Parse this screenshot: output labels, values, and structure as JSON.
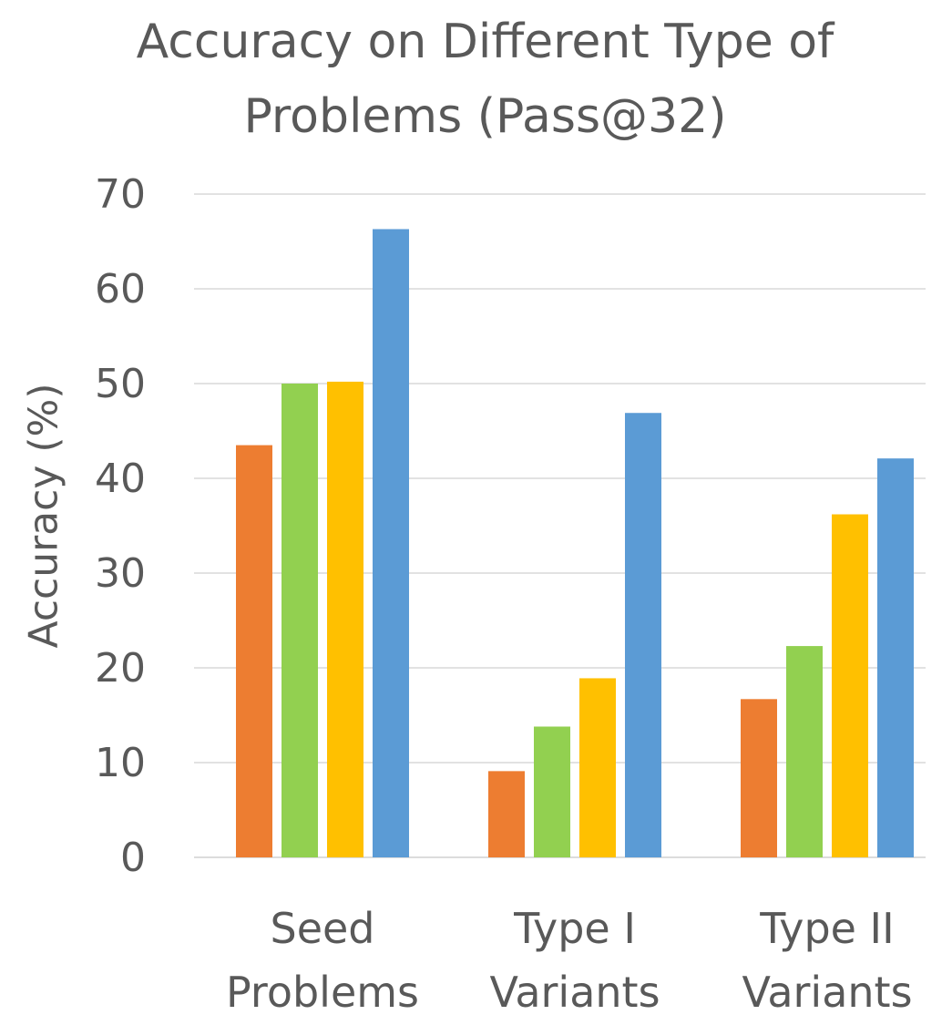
{
  "chart_data": {
    "type": "bar",
    "title_lines": [
      "Accuracy on Different Type of",
      "Problems (Pass@32)"
    ],
    "xlabel": "",
    "ylabel": "Accuracy (%)",
    "ylim": [
      0,
      70
    ],
    "yticks": [
      0,
      10,
      20,
      30,
      40,
      50,
      60,
      70
    ],
    "grid": true,
    "legend": "none",
    "categories": [
      [
        "Seed",
        "Problems"
      ],
      [
        "Type I",
        "Variants"
      ],
      [
        "Type II",
        "Variants"
      ]
    ],
    "series": [
      {
        "color": "#ED7D31",
        "values": [
          43.5,
          9.1,
          16.7
        ]
      },
      {
        "color": "#92D050",
        "values": [
          50.0,
          13.8,
          22.3
        ]
      },
      {
        "color": "#FFC000",
        "values": [
          50.2,
          18.9,
          36.2
        ]
      },
      {
        "color": "#5B9BD5",
        "values": [
          66.3,
          46.9,
          42.1
        ]
      }
    ]
  }
}
